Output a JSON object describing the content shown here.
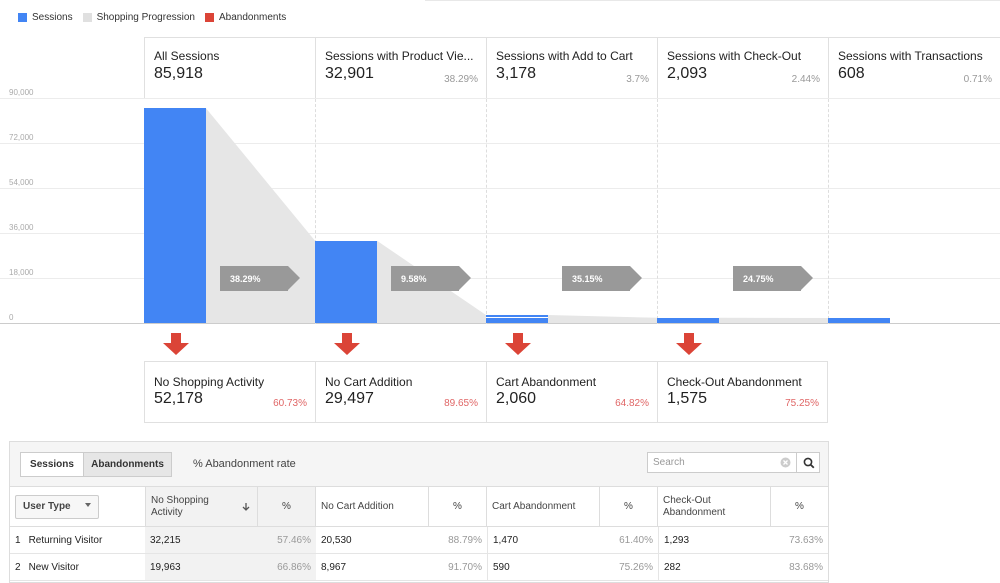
{
  "legend": [
    {
      "label": "Sessions",
      "color": "#4285f4"
    },
    {
      "label": "Shopping Progression",
      "color": "#e0e0e0"
    },
    {
      "label": "Abandonments",
      "color": "#db4437"
    }
  ],
  "stages": [
    {
      "title": "All Sessions",
      "value": "85,918",
      "pct": ""
    },
    {
      "title": "Sessions with Product Vie...",
      "value": "32,901",
      "pct": "38.29%"
    },
    {
      "title": "Sessions with Add to Cart",
      "value": "3,178",
      "pct": "3.7%"
    },
    {
      "title": "Sessions with Check-Out",
      "value": "2,093",
      "pct": "2.44%"
    },
    {
      "title": "Sessions with Transactions",
      "value": "608",
      "pct": "0.71%"
    }
  ],
  "chart_data": {
    "type": "bar",
    "categories": [
      "All Sessions",
      "Sessions with Product Views",
      "Sessions with Add to Cart",
      "Sessions with Check-Out",
      "Sessions with Transactions"
    ],
    "values": [
      85918,
      32901,
      3178,
      2093,
      608
    ],
    "ylim": [
      0,
      90000
    ],
    "yticks": [
      "90,000",
      "72,000",
      "54,000",
      "36,000",
      "18,000",
      "0"
    ],
    "progression": [
      "38.29%",
      "9.58%",
      "35.15%",
      "24.75%"
    ]
  },
  "abandonments": [
    {
      "title": "No Shopping Activity",
      "value": "52,178",
      "pct": "60.73%"
    },
    {
      "title": "No Cart Addition",
      "value": "29,497",
      "pct": "89.65%"
    },
    {
      "title": "Cart Abandonment",
      "value": "2,060",
      "pct": "64.82%"
    },
    {
      "title": "Check-Out Abandonment",
      "value": "1,575",
      "pct": "75.25%"
    }
  ],
  "table": {
    "tabs": [
      "Sessions",
      "Abandonments"
    ],
    "rate_label": "% Abandonment rate",
    "search_placeholder": "Search",
    "dimension": "User Type",
    "columns": [
      "No Shopping Activity",
      "%",
      "No Cart Addition",
      "%",
      "Cart Abandonment",
      "%",
      "Check-Out Abandonment",
      "%"
    ],
    "rows": [
      {
        "idx": "1",
        "name": "Returning Visitor",
        "cells": [
          "32,215",
          "57.46%",
          "20,530",
          "88.79%",
          "1,470",
          "61.40%",
          "1,293",
          "73.63%"
        ]
      },
      {
        "idx": "2",
        "name": "New Visitor",
        "cells": [
          "19,963",
          "66.86%",
          "8,967",
          "91.70%",
          "590",
          "75.26%",
          "282",
          "83.68%"
        ]
      }
    ]
  }
}
